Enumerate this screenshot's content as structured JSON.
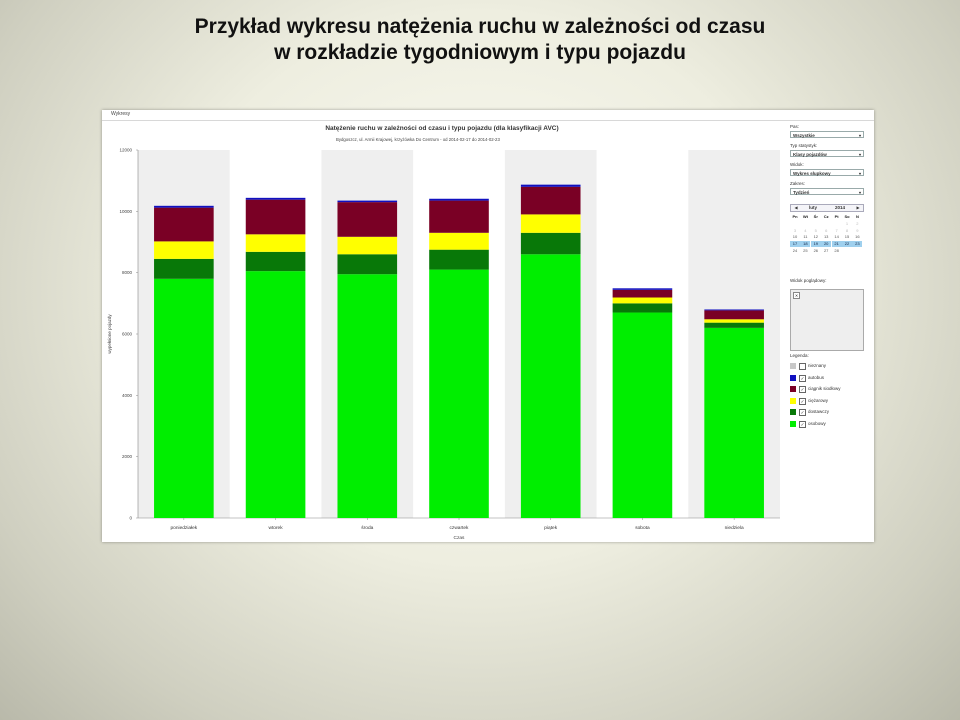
{
  "slide": {
    "title_line1": "Przykład wykresu natężenia ruchu w zależności od czasu",
    "title_line2": "w rozkładzie tygodniowym i typu pojazdu"
  },
  "window": {
    "tab_label": "Wykresy"
  },
  "chart_data": {
    "type": "bar",
    "stacked": true,
    "title": "Natężenie ruchu w zależności od czasu i typu pojazdu (dla klasyfikacji AVC)",
    "subtitle": "Bydgoszcz, ul. Armii Krajowej, krzyżówka Do Centrum - od 2014-02-17 do 2014-02-23",
    "xlabel": "Czas",
    "ylabel": "wypełnione pojazdy",
    "ylim": [
      0,
      12000
    ],
    "yticks": [
      0,
      2000,
      4000,
      6000,
      8000,
      10000,
      12000
    ],
    "ytick_labels": [
      "0",
      "2000",
      "4000",
      "6000",
      "8000",
      "10000",
      "12000"
    ],
    "categories": [
      "poniedziałek",
      "wtorek",
      "środa",
      "czwartek",
      "piątek",
      "sobota",
      "niedziela"
    ],
    "grid": false,
    "series": [
      {
        "name": "osobowy",
        "color": "#00ee00",
        "values": [
          7800,
          8050,
          7950,
          8100,
          8600,
          6700,
          6200
        ]
      },
      {
        "name": "dostawczy",
        "color": "#087808",
        "values": [
          650,
          630,
          650,
          650,
          700,
          300,
          170
        ]
      },
      {
        "name": "ciężarowy",
        "color": "#ffff00",
        "values": [
          570,
          570,
          570,
          550,
          600,
          190,
          110
        ]
      },
      {
        "name": "ciągnik siodłowy",
        "color": "#7a0025",
        "values": [
          1100,
          1130,
          1130,
          1050,
          900,
          250,
          290
        ]
      },
      {
        "name": "autobus",
        "color": "#1010c0",
        "values": [
          60,
          60,
          50,
          60,
          70,
          50,
          30
        ]
      }
    ]
  },
  "sidebar": {
    "pas_label": "Pas:",
    "pas_value": "Wszystkie",
    "typ_label": "Typ statystyk:",
    "typ_value": "Klasy pojazdów",
    "widok_label": "Widok:",
    "widok_value": "Wykres słupkowy",
    "zakres_label": "Zakres:",
    "zakres_value": "Tydzień",
    "calendar": {
      "prev": "◀",
      "next": "▶",
      "month": "luty",
      "year": "2014",
      "weekdays": [
        "Pn",
        "Wt",
        "Śr",
        "Cz",
        "Pt",
        "So",
        "N"
      ],
      "rows": [
        [
          "",
          "",
          "",
          "",
          "",
          "1",
          "2"
        ],
        [
          "3",
          "4",
          "5",
          "6",
          "7",
          "8",
          "9"
        ],
        [
          "10",
          "11",
          "12",
          "13",
          "14",
          "15",
          "16"
        ],
        [
          "17",
          "18",
          "19",
          "20",
          "21",
          "22",
          "23"
        ],
        [
          "24",
          "25",
          "26",
          "27",
          "28",
          "",
          ""
        ]
      ],
      "selected_week_row": 3
    },
    "preview_label": "Widok poglądowy:",
    "preview_icon": "image-placeholder-icon",
    "legend_label": "Legenda:",
    "legend": [
      {
        "name": "nieznany",
        "color": "#c8c8c8",
        "checked": false
      },
      {
        "name": "autobus",
        "color": "#1010c0",
        "checked": true
      },
      {
        "name": "ciągnik siodłowy",
        "color": "#7a0025",
        "checked": true
      },
      {
        "name": "ciężarowy",
        "color": "#ffff00",
        "checked": true
      },
      {
        "name": "dostawczy",
        "color": "#087808",
        "checked": true
      },
      {
        "name": "osobowy",
        "color": "#00ee00",
        "checked": true
      }
    ]
  }
}
